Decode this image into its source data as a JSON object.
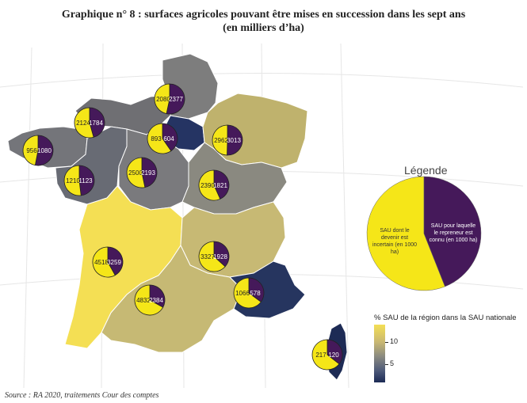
{
  "title_line1": "Graphique n° 8 : surfaces agricoles pouvant être mises en succession dans les sept ans",
  "title_line2": "(en milliers d’ha)",
  "source": "Source : RA 2020, traitements Cour des comptes",
  "legend": {
    "title": "Légende",
    "uncertain_label": "SAU dont le devenir est incertain (en 1000 ha)",
    "known_label": "SAU pour laquelle le repreneur est connu (en 1000 ha)"
  },
  "colorbar": {
    "title": "% SAU de la région dans la SAU nationale",
    "ticks": [
      "10",
      "5"
    ],
    "colors": {
      "high": "#f4df54",
      "low": "#1b2a55"
    }
  },
  "colors": {
    "uncertain": "#f5e618",
    "known": "#45195a"
  },
  "regions": [
    {
      "name": "Normandie",
      "uncertain": "2080",
      "known": "2377"
    },
    {
      "name": "Hauts-de-France",
      "uncertain": "",
      "known": ""
    },
    {
      "name": "Bretagne",
      "uncertain": "956",
      "known": "1080"
    },
    {
      "name": "Pays de la Loire",
      "uncertain": "2124",
      "known": "1784"
    },
    {
      "name": "Île-de-France",
      "uncertain": "893",
      "known": "604"
    },
    {
      "name": "Grand Est",
      "uncertain": "2962",
      "known": "3013"
    },
    {
      "name": "Centre-Val de Loire",
      "uncertain": "2500",
      "known": "2193"
    },
    {
      "name": "Pays de la Loire sud",
      "uncertain": "1210",
      "known": "1123"
    },
    {
      "name": "Bourgogne-Franche-Comté",
      "uncertain": "2390",
      "known": "1821"
    },
    {
      "name": "Nouvelle-Aquitaine",
      "uncertain": "4518",
      "known": "3259"
    },
    {
      "name": "Auvergne-Rhône-Alpes",
      "uncertain": "3327",
      "known": "1928"
    },
    {
      "name": "Provence-Alpes-Côte d'Azur",
      "uncertain": "1066",
      "known": "578"
    },
    {
      "name": "Occitanie",
      "uncertain": "4832",
      "known": "2384"
    },
    {
      "name": "Corse",
      "uncertain": "217",
      "known": "120"
    }
  ]
}
